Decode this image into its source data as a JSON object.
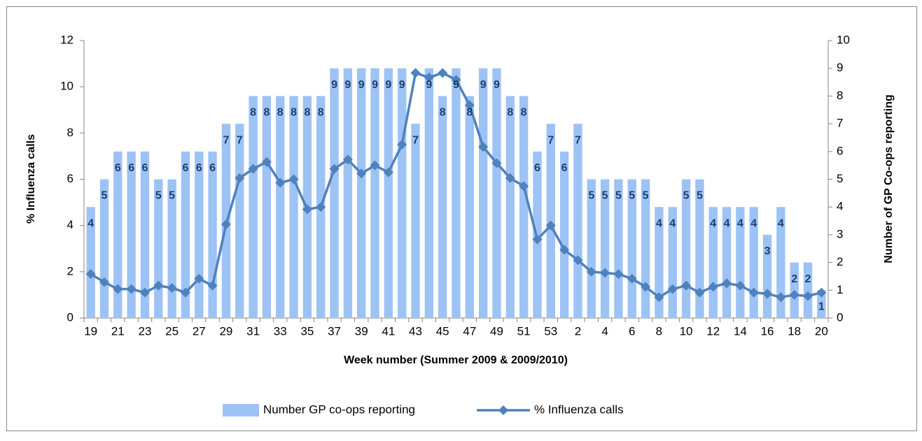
{
  "chart_data": {
    "type": "bar",
    "x_label": "Week number (Summer 2009 & 2009/2010)",
    "y_label": "% Influenza calls",
    "y2_label": "Number of GP Co-ops reporting",
    "categories": [
      "19",
      null,
      "21",
      null,
      "23",
      null,
      "25",
      null,
      "27",
      null,
      "29",
      null,
      "31",
      null,
      "33",
      null,
      "35",
      null,
      "37",
      null,
      "39",
      null,
      "41",
      null,
      "43",
      null,
      "45",
      null,
      "47",
      null,
      "49",
      null,
      "51",
      null,
      "53",
      null,
      "2",
      null,
      "4",
      null,
      "6",
      null,
      "8",
      null,
      "10",
      null,
      "12",
      null,
      "14",
      null,
      "16",
      null,
      "18",
      null,
      "20"
    ],
    "ylim": [
      0,
      12
    ],
    "yticks": [
      0,
      2,
      4,
      6,
      8,
      10,
      12
    ],
    "y2lim": [
      0,
      10
    ],
    "y2ticks": [
      0,
      1,
      2,
      3,
      4,
      5,
      6,
      7,
      8,
      9,
      10
    ],
    "legend": "bottom",
    "series": [
      {
        "name": "Number GP co-ops reporting",
        "type": "bar",
        "axis": "y2",
        "color": "#9dc3f5",
        "data_labels": true,
        "values": [
          4,
          5,
          6,
          6,
          6,
          5,
          5,
          6,
          6,
          6,
          7,
          7,
          8,
          8,
          8,
          8,
          8,
          8,
          9,
          9,
          9,
          9,
          9,
          9,
          7,
          9,
          8,
          9,
          8,
          9,
          9,
          8,
          8,
          6,
          7,
          6,
          7,
          5,
          5,
          5,
          5,
          5,
          4,
          4,
          5,
          5,
          4,
          4,
          4,
          4,
          3,
          4,
          2,
          2,
          1
        ]
      },
      {
        "name": "% Influenza calls",
        "type": "line",
        "axis": "y",
        "color": "#4f81bd",
        "marker": "diamond",
        "values": [
          1.9,
          1.55,
          1.25,
          1.25,
          1.1,
          1.4,
          1.3,
          1.1,
          1.7,
          1.4,
          4.05,
          6.05,
          6.45,
          6.75,
          5.85,
          6.0,
          4.7,
          4.8,
          6.45,
          6.85,
          6.25,
          6.6,
          6.3,
          7.5,
          10.6,
          10.4,
          10.6,
          10.3,
          9.2,
          7.4,
          6.7,
          6.05,
          5.7,
          3.4,
          4.0,
          2.95,
          2.5,
          2.0,
          1.95,
          1.9,
          1.7,
          1.35,
          0.9,
          1.25,
          1.4,
          1.1,
          1.35,
          1.5,
          1.4,
          1.1,
          1.05,
          0.9,
          1.0,
          0.95,
          1.1
        ]
      }
    ]
  }
}
